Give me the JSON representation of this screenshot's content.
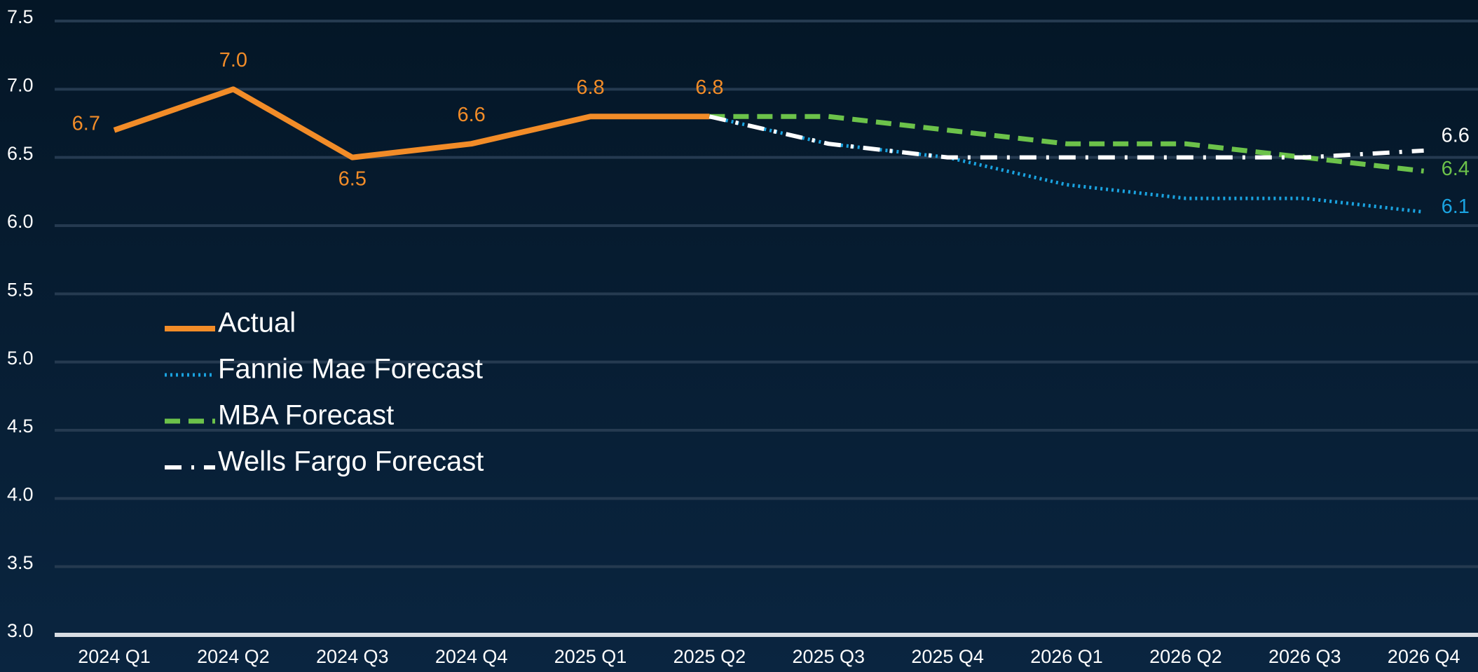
{
  "chart_data": {
    "type": "line",
    "categories": [
      "2024 Q1",
      "2024 Q2",
      "2024 Q3",
      "2024 Q4",
      "2025 Q1",
      "2025 Q2",
      "2025 Q3",
      "2025 Q4",
      "2026 Q1",
      "2026 Q2",
      "2026 Q3",
      "2026 Q4"
    ],
    "series": [
      {
        "name": "Actual",
        "color": "#f28c28",
        "dash": "solid",
        "values": [
          6.7,
          7.0,
          6.5,
          6.6,
          6.8,
          6.8,
          null,
          null,
          null,
          null,
          null,
          null
        ],
        "value_labels": [
          "6.7",
          "7.0",
          "6.5",
          "6.6",
          "6.8",
          "6.8",
          null,
          null,
          null,
          null,
          null,
          null
        ]
      },
      {
        "name": "Fannie Mae Forecast",
        "color": "#1aa3e0",
        "dash": "dotted",
        "values": [
          null,
          null,
          null,
          null,
          null,
          6.8,
          6.6,
          6.5,
          6.3,
          6.2,
          6.2,
          6.1
        ],
        "value_labels": [
          null,
          null,
          null,
          null,
          null,
          null,
          null,
          null,
          null,
          null,
          null,
          "6.1"
        ]
      },
      {
        "name": "MBA Forecast",
        "color": "#6cc24a",
        "dash": "dashed",
        "values": [
          null,
          null,
          null,
          null,
          null,
          6.8,
          6.8,
          6.7,
          6.6,
          6.6,
          6.5,
          6.4
        ],
        "value_labels": [
          null,
          null,
          null,
          null,
          null,
          null,
          null,
          null,
          null,
          null,
          null,
          "6.4"
        ]
      },
      {
        "name": "Wells Fargo Forecast",
        "color": "#ffffff",
        "dash": "dashdot",
        "values": [
          null,
          null,
          null,
          null,
          null,
          6.8,
          6.6,
          6.5,
          6.5,
          6.5,
          6.5,
          6.55
        ],
        "value_labels": [
          null,
          null,
          null,
          null,
          null,
          null,
          null,
          null,
          null,
          null,
          null,
          "6.6"
        ]
      }
    ],
    "ylim": [
      3.0,
      7.5
    ],
    "yticks": [
      {
        "value": 3.0,
        "label": "3.0"
      },
      3.5,
      {
        "value": 4.0,
        "label": "4.0"
      },
      4.5,
      {
        "value": 5.0,
        "label": "5.0"
      },
      5.5,
      {
        "value": 6.0,
        "label": "6.0"
      },
      6.5,
      {
        "value": 7.0,
        "label": "7.0"
      },
      7.5
    ],
    "grid": true,
    "legend": "left"
  }
}
